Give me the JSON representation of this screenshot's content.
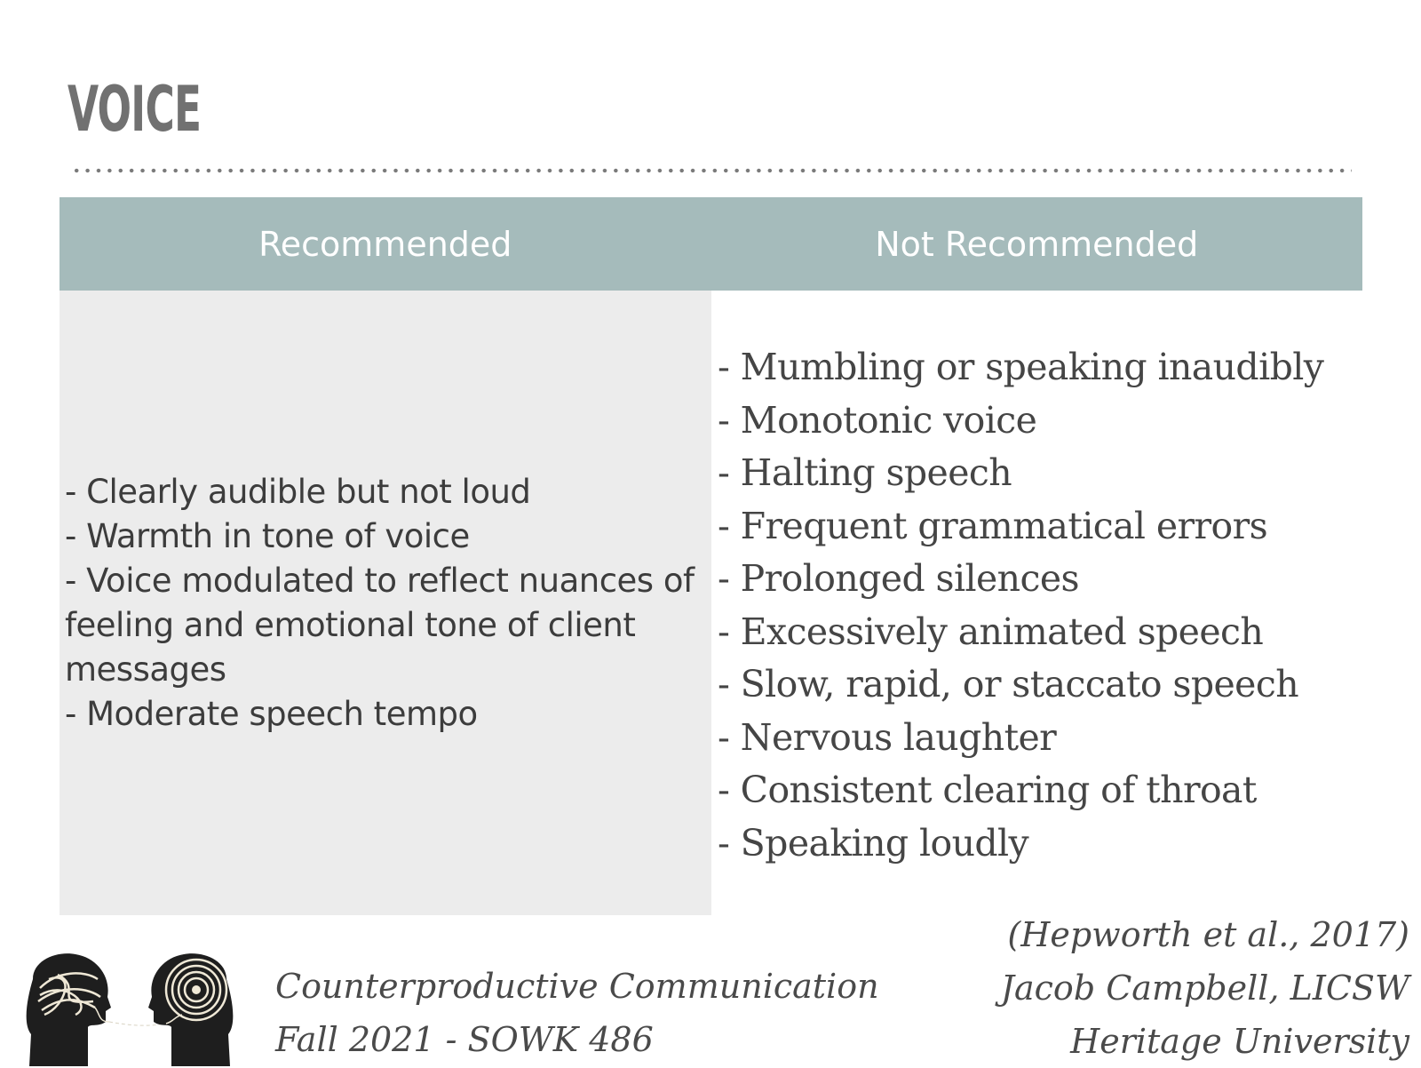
{
  "slide": {
    "title": "VOICE"
  },
  "table": {
    "headers": [
      "Recommended",
      "Not Recommended"
    ],
    "recommended": [
      "- Clearly audible but not loud",
      "- Warmth in tone of voice",
      "- Voice modulated to reflect nuances of feeling and emotional tone of client messages",
      "- Moderate speech tempo"
    ],
    "not_recommended": [
      "- Mumbling or speaking inaudibly",
      "- Monotonic voice",
      "- Halting speech",
      "- Frequent grammatical errors",
      "- Prolonged silences",
      "- Excessively animated speech",
      "- Slow, rapid, or staccato speech",
      "- Nervous laughter",
      "- Consistent clearing of throat",
      "- Speaking loudly"
    ]
  },
  "footer": {
    "course_title": "Counterproductive Communication",
    "course_term": "Fall 2021 - SOWK 486",
    "citation": "(Hepworth et al., 2017)",
    "author": "Jacob Campbell, LICSW",
    "institution": "Heritage University"
  },
  "colors": {
    "header": "#a5bbbb",
    "left_cell": "#ececec",
    "title": "#717171"
  }
}
